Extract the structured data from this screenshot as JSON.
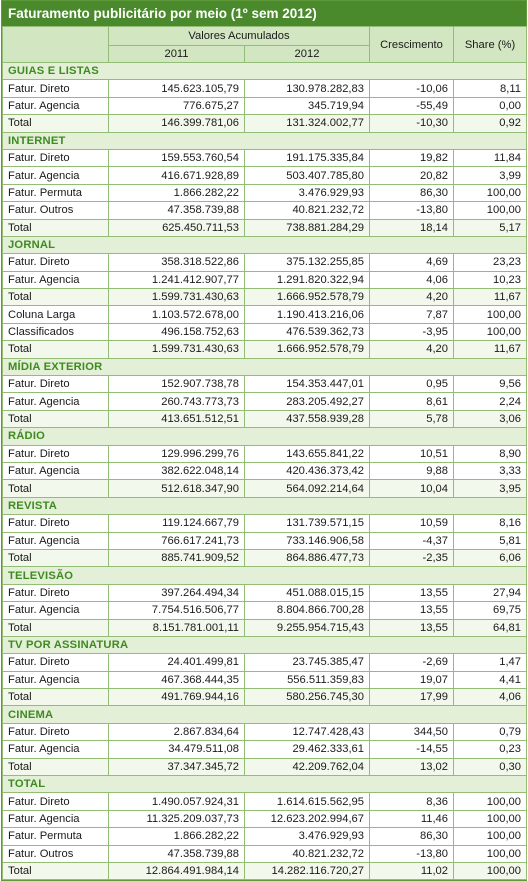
{
  "title": "Faturamento publicitário por meio (1º sem 2012)",
  "header": {
    "group": "Valores Acumulados",
    "year1": "2011",
    "year2": "2012",
    "growth": "Crescimento",
    "share": "Share (%)"
  },
  "sections": [
    {
      "name": "GUIAS E LISTAS",
      "rows": [
        [
          "Fatur. Direto",
          "145.623.105,79",
          "130.978.282,83",
          "-10,06",
          "8,11"
        ],
        [
          "Fatur. Agencia",
          "776.675,27",
          "345.719,94",
          "-55,49",
          "0,00"
        ],
        [
          "Total",
          "146.399.781,06",
          "131.324.002,77",
          "-10,30",
          "0,92"
        ]
      ]
    },
    {
      "name": "INTERNET",
      "rows": [
        [
          "Fatur. Direto",
          "159.553.760,54",
          "191.175.335,84",
          "19,82",
          "11,84"
        ],
        [
          "Fatur. Agencia",
          "416.671.928,89",
          "503.407.785,80",
          "20,82",
          "3,99"
        ],
        [
          "Fatur. Permuta",
          "1.866.282,22",
          "3.476.929,93",
          "86,30",
          "100,00"
        ],
        [
          "Fatur. Outros",
          "47.358.739,88",
          "40.821.232,72",
          "-13,80",
          "100,00"
        ],
        [
          "Total",
          "625.450.711,53",
          "738.881.284,29",
          "18,14",
          "5,17"
        ]
      ]
    },
    {
      "name": "JORNAL",
      "rows": [
        [
          "Fatur. Direto",
          "358.318.522,86",
          "375.132.255,85",
          "4,69",
          "23,23"
        ],
        [
          "Fatur. Agencia",
          "1.241.412.907,77",
          "1.291.820.322,94",
          "4,06",
          "10,23"
        ],
        [
          "Total",
          "1.599.731.430,63",
          "1.666.952.578,79",
          "4,20",
          "11,67"
        ],
        [
          "Coluna Larga",
          "1.103.572.678,00",
          "1.190.413.216,06",
          "7,87",
          "100,00"
        ],
        [
          "Classificados",
          "496.158.752,63",
          "476.539.362,73",
          "-3,95",
          "100,00"
        ],
        [
          "Total",
          "1.599.731.430,63",
          "1.666.952.578,79",
          "4,20",
          "11,67"
        ]
      ]
    },
    {
      "name": "MÍDIA EXTERIOR",
      "rows": [
        [
          "Fatur. Direto",
          "152.907.738,78",
          "154.353.447,01",
          "0,95",
          "9,56"
        ],
        [
          "Fatur. Agencia",
          "260.743.773,73",
          "283.205.492,27",
          "8,61",
          "2,24"
        ],
        [
          "Total",
          "413.651.512,51",
          "437.558.939,28",
          "5,78",
          "3,06"
        ]
      ]
    },
    {
      "name": "RÁDIO",
      "rows": [
        [
          "Fatur. Direto",
          "129.996.299,76",
          "143.655.841,22",
          "10,51",
          "8,90"
        ],
        [
          "Fatur. Agencia",
          "382.622.048,14",
          "420.436.373,42",
          "9,88",
          "3,33"
        ],
        [
          "Total",
          "512.618.347,90",
          "564.092.214,64",
          "10,04",
          "3,95"
        ]
      ]
    },
    {
      "name": "REVISTA",
      "rows": [
        [
          "Fatur. Direto",
          "119.124.667,79",
          "131.739.571,15",
          "10,59",
          "8,16"
        ],
        [
          "Fatur. Agencia",
          "766.617.241,73",
          "733.146.906,58",
          "-4,37",
          "5,81"
        ],
        [
          "Total",
          "885.741.909,52",
          "864.886.477,73",
          "-2,35",
          "6,06"
        ]
      ]
    },
    {
      "name": "TELEVISÃO",
      "rows": [
        [
          "Fatur. Direto",
          "397.264.494,34",
          "451.088.015,15",
          "13,55",
          "27,94"
        ],
        [
          "Fatur. Agencia",
          "7.754.516.506,77",
          "8.804.866.700,28",
          "13,55",
          "69,75"
        ],
        [
          "Total",
          "8.151.781.001,11",
          "9.255.954.715,43",
          "13,55",
          "64,81"
        ]
      ]
    },
    {
      "name": "TV POR ASSINATURA",
      "rows": [
        [
          "Fatur. Direto",
          "24.401.499,81",
          "23.745.385,47",
          "-2,69",
          "1,47"
        ],
        [
          "Fatur. Agencia",
          "467.368.444,35",
          "556.511.359,83",
          "19,07",
          "4,41"
        ],
        [
          "Total",
          "491.769.944,16",
          "580.256.745,30",
          "17,99",
          "4,06"
        ]
      ]
    },
    {
      "name": "CINEMA",
      "rows": [
        [
          "Fatur. Direto",
          "2.867.834,64",
          "12.747.428,43",
          "344,50",
          "0,79"
        ],
        [
          "Fatur. Agencia",
          "34.479.511,08",
          "29.462.333,61",
          "-14,55",
          "0,23"
        ],
        [
          "Total",
          "37.347.345,72",
          "42.209.762,04",
          "13,02",
          "0,30"
        ]
      ]
    },
    {
      "name": "TOTAL",
      "rows": [
        [
          "Fatur. Direto",
          "1.490.057.924,31",
          "1.614.615.562,95",
          "8,36",
          "100,00"
        ],
        [
          "Fatur. Agencia",
          "11.325.209.037,73",
          "12.623.202.994,67",
          "11,46",
          "100,00"
        ],
        [
          "Fatur. Permuta",
          "1.866.282,22",
          "3.476.929,93",
          "86,30",
          "100,00"
        ],
        [
          "Fatur. Outros",
          "47.358.739,88",
          "40.821.232,72",
          "-13,80",
          "100,00"
        ],
        [
          "Total",
          "12.864.491.984,14",
          "14.282.116.720,27",
          "11,02",
          "100,00"
        ]
      ]
    }
  ]
}
